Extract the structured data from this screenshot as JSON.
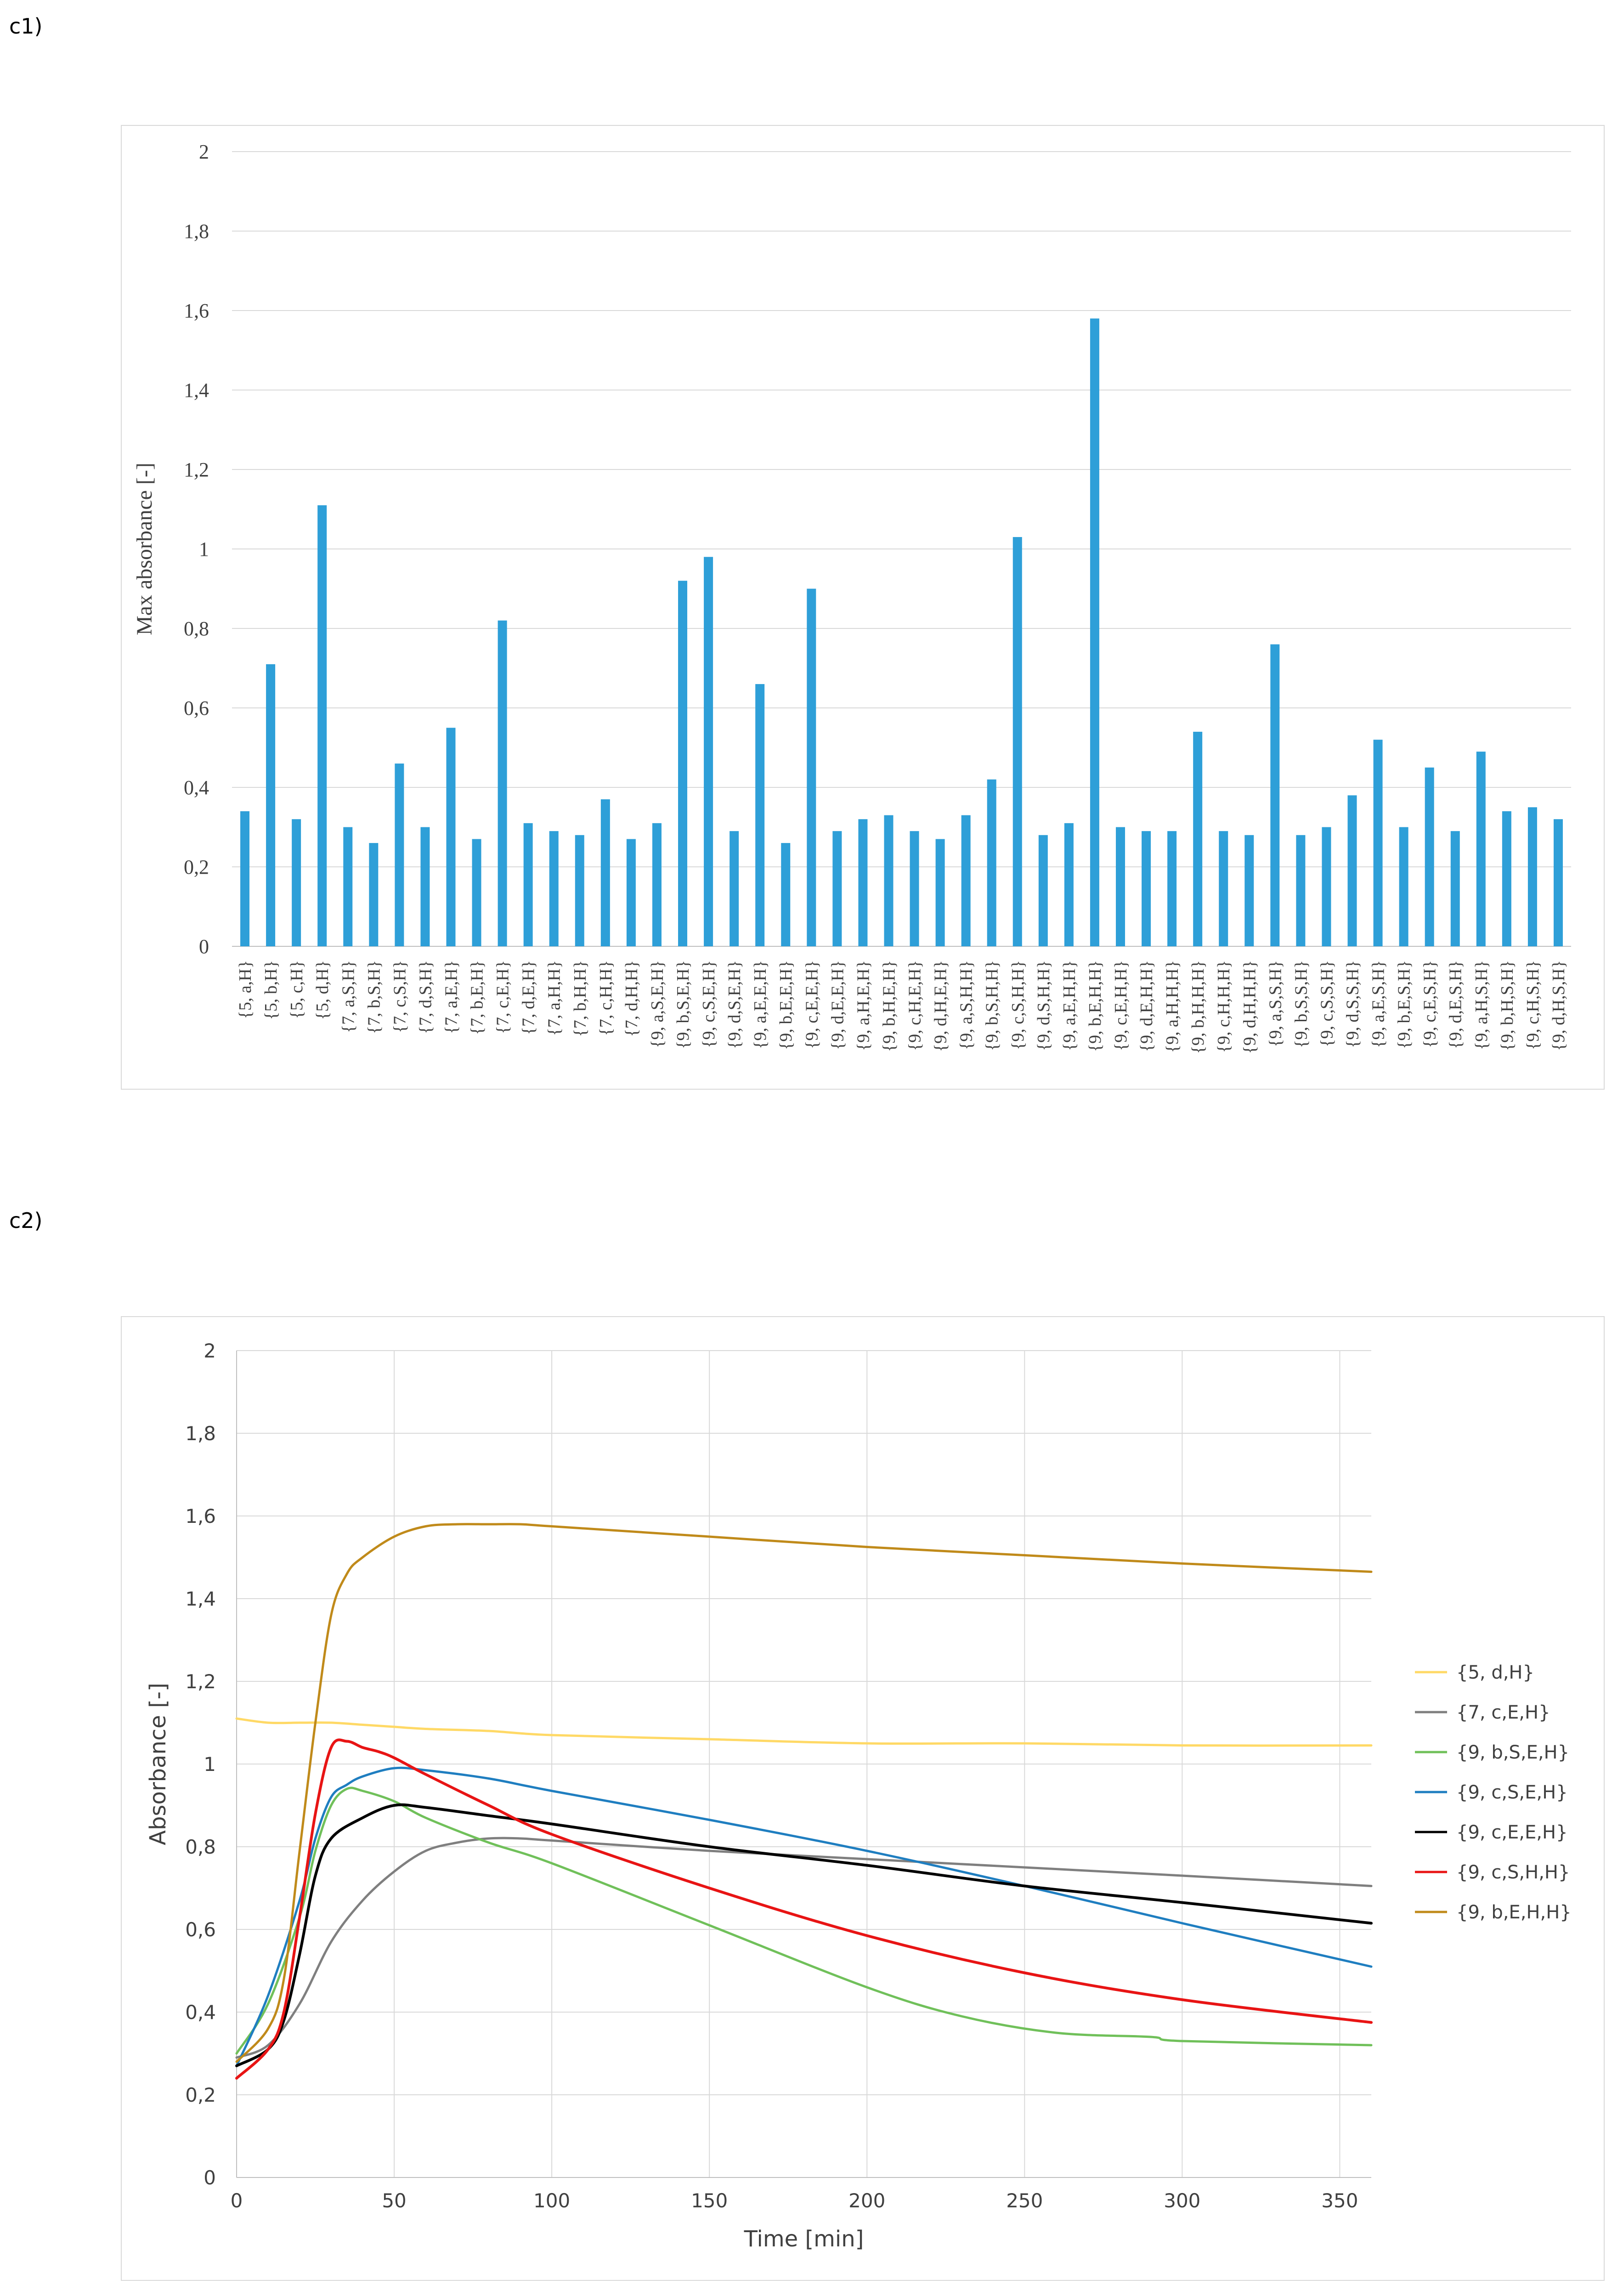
{
  "panels": [
    {
      "label": "c1)"
    },
    {
      "label": "c2)"
    }
  ],
  "chart_data": [
    {
      "type": "bar",
      "title": "",
      "xlabel": "",
      "ylabel": "Max absorbance [-]",
      "ylim": [
        0,
        2
      ],
      "yticks": [
        "0",
        "0,2",
        "0,4",
        "0,6",
        "0,8",
        "1",
        "1,2",
        "1,4",
        "1,6",
        "1,8",
        "2"
      ],
      "grid": true,
      "bar_color": "#2e9fd8",
      "categories": [
        "{5, a,H}",
        "{5, b,H}",
        "{5, c,H}",
        "{5, d,H}",
        "{7, a,S,H}",
        "{7, b,S,H}",
        "{7, c,S,H}",
        "{7, d,S,H}",
        "{7, a,E,H}",
        "{7, b,E,H}",
        "{7, c,E,H}",
        "{7, d,E,H}",
        "{7, a,H,H}",
        "{7, b,H,H}",
        "{7, c,H,H}",
        "{7, d,H,H}",
        "{9, a,S,E,H}",
        "{9, b,S,E,H}",
        "{9, c,S,E,H}",
        "{9, d,S,E,H}",
        "{9, a,E,E,H}",
        "{9, b,E,E,H}",
        "{9, c,E,E,H}",
        "{9, d,E,E,H}",
        "{9, a,H,E,H}",
        "{9, b,H,E,H}",
        "{9, c,H,E,H}",
        "{9, d,H,E,H}",
        "{9, a,S,H,H}",
        "{9, b,S,H,H}",
        "{9, c,S,H,H}",
        "{9, d,S,H,H}",
        "{9, a,E,H,H}",
        "{9, b,E,H,H}",
        "{9, c,E,H,H}",
        "{9, d,E,H,H}",
        "{9, a,H,H,H}",
        "{9, b,H,H,H}",
        "{9, c,H,H,H}",
        "{9, d,H,H,H}",
        "{9, a,S,S,H}",
        "{9, b,S,S,H}",
        "{9, c,S,S,H}",
        "{9, d,S,S,H}",
        "{9, a,E,S,H}",
        "{9, b,E,S,H}",
        "{9, c,E,S,H}",
        "{9, d,E,S,H}",
        "{9, a,H,S,H}",
        "{9, b,H,S,H}",
        "{9, c,H,S,H}",
        "{9, d,H,S,H}"
      ],
      "values": [
        0.34,
        0.71,
        0.32,
        1.11,
        0.3,
        0.26,
        0.46,
        0.3,
        0.55,
        0.27,
        0.82,
        0.31,
        0.29,
        0.28,
        0.37,
        0.27,
        0.31,
        0.92,
        0.98,
        0.29,
        0.66,
        0.26,
        0.9,
        0.29,
        0.32,
        0.33,
        0.29,
        0.27,
        0.33,
        0.42,
        1.03,
        0.28,
        0.31,
        1.58,
        0.3,
        0.29,
        0.29,
        0.54,
        0.29,
        0.28,
        0.76,
        0.28,
        0.3,
        0.38,
        0.52,
        0.3,
        0.45,
        0.29,
        0.49,
        0.34,
        0.35,
        0.32
      ]
    },
    {
      "type": "line",
      "title": "",
      "xlabel": "Time [min]",
      "ylabel": "Absorbance [-]",
      "xlim": [
        0,
        360
      ],
      "ylim": [
        0,
        2
      ],
      "xticks": [
        "0",
        "50",
        "100",
        "150",
        "200",
        "250",
        "300",
        "350"
      ],
      "yticks": [
        "0",
        "0,2",
        "0,4",
        "0,6",
        "0,8",
        "1",
        "1,2",
        "1,4",
        "1,6",
        "1,8",
        "2"
      ],
      "grid": true,
      "legend": "right",
      "series": [
        {
          "name": "{5, d,H}",
          "color": "#ffd966",
          "x": [
            0,
            10,
            20,
            30,
            40,
            50,
            60,
            80,
            100,
            150,
            200,
            250,
            300,
            360
          ],
          "y": [
            1.11,
            1.1,
            1.1,
            1.1,
            1.095,
            1.09,
            1.085,
            1.08,
            1.07,
            1.06,
            1.05,
            1.05,
            1.045,
            1.045
          ]
        },
        {
          "name": "{7, c,E,H}",
          "color": "#7f7f7f",
          "x": [
            0,
            10,
            20,
            30,
            40,
            50,
            60,
            70,
            80,
            90,
            100,
            150,
            200,
            250,
            300,
            360
          ],
          "y": [
            0.29,
            0.32,
            0.42,
            0.57,
            0.67,
            0.74,
            0.79,
            0.81,
            0.82,
            0.82,
            0.815,
            0.79,
            0.77,
            0.75,
            0.73,
            0.705
          ]
        },
        {
          "name": "{9, b,S,E,H}",
          "color": "#70c05a",
          "x": [
            0,
            10,
            20,
            25,
            30,
            35,
            40,
            50,
            60,
            80,
            100,
            150,
            200,
            230,
            260,
            290,
            300,
            360
          ],
          "y": [
            0.3,
            0.42,
            0.63,
            0.79,
            0.9,
            0.94,
            0.935,
            0.91,
            0.87,
            0.81,
            0.76,
            0.61,
            0.46,
            0.39,
            0.35,
            0.34,
            0.33,
            0.32
          ]
        },
        {
          "name": "{9, c,S,E,H}",
          "color": "#1f7ec0",
          "x": [
            0,
            10,
            20,
            25,
            30,
            35,
            40,
            50,
            60,
            80,
            100,
            150,
            200,
            250,
            300,
            360
          ],
          "y": [
            0.27,
            0.44,
            0.67,
            0.82,
            0.92,
            0.95,
            0.97,
            0.99,
            0.985,
            0.965,
            0.935,
            0.865,
            0.79,
            0.705,
            0.615,
            0.51
          ]
        },
        {
          "name": "{9, c,E,E,H}",
          "color": "#000000",
          "x": [
            0,
            10,
            15,
            20,
            25,
            30,
            40,
            50,
            60,
            80,
            100,
            150,
            200,
            250,
            300,
            360
          ],
          "y": [
            0.27,
            0.31,
            0.38,
            0.54,
            0.73,
            0.82,
            0.87,
            0.9,
            0.895,
            0.875,
            0.855,
            0.8,
            0.755,
            0.705,
            0.665,
            0.615
          ]
        },
        {
          "name": "{9, c,S,H,H}",
          "color": "#e81414",
          "x": [
            0,
            10,
            15,
            20,
            25,
            30,
            35,
            40,
            45,
            50,
            60,
            80,
            100,
            150,
            200,
            250,
            300,
            360
          ],
          "y": [
            0.24,
            0.31,
            0.4,
            0.63,
            0.88,
            1.04,
            1.055,
            1.04,
            1.03,
            1.015,
            0.975,
            0.9,
            0.83,
            0.7,
            0.585,
            0.495,
            0.43,
            0.375
          ]
        },
        {
          "name": "{9, b,E,H,H}",
          "color": "#c08a1a",
          "x": [
            0,
            10,
            15,
            20,
            25,
            30,
            35,
            40,
            50,
            60,
            70,
            80,
            90,
            100,
            150,
            200,
            250,
            300,
            360
          ],
          "y": [
            0.28,
            0.36,
            0.48,
            0.79,
            1.1,
            1.36,
            1.46,
            1.5,
            1.55,
            1.575,
            1.58,
            1.58,
            1.58,
            1.575,
            1.55,
            1.525,
            1.505,
            1.485,
            1.465
          ]
        }
      ]
    }
  ]
}
